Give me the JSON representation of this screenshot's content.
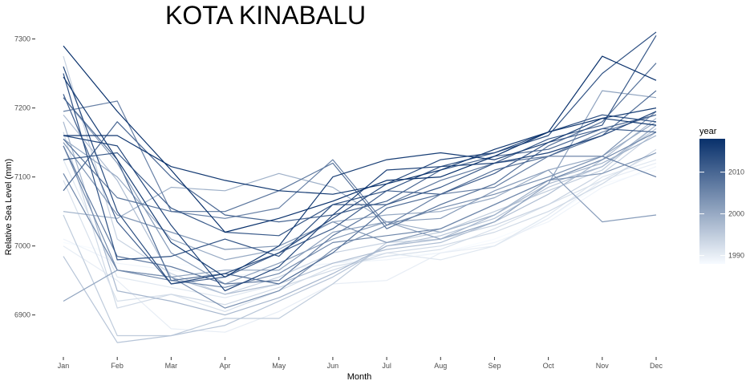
{
  "chart_data": {
    "type": "line",
    "title": "KOTA KINABALU",
    "xlabel": "Month",
    "ylabel": "Relative Sea Level (mm)",
    "categories": [
      "Jan",
      "Feb",
      "Mar",
      "Apr",
      "May",
      "Jun",
      "Jul",
      "Aug",
      "Sep",
      "Oct",
      "Nov",
      "Dec"
    ],
    "yticks": [
      6900,
      7000,
      7100,
      7200,
      7300
    ],
    "ylim": [
      6845,
      7310
    ],
    "grid": false,
    "legend": {
      "title": "year",
      "position": "right",
      "min": 1988,
      "max": 2018,
      "ticks": [
        1990,
        2000,
        2010
      ],
      "color_low": "#f7fbff",
      "color_high": "#08306b"
    },
    "series": [
      {
        "year": 1988,
        "values": [
          7005,
          6990,
          6975,
          6965,
          6970,
          6975,
          6985,
          6990,
          7010,
          7040,
          7090,
          7110
        ]
      },
      {
        "year": 1989,
        "values": [
          7010,
          6975,
          6965,
          6955,
          6965,
          6975,
          6980,
          6990,
          7005,
          7035,
          7085,
          7115
        ]
      },
      {
        "year": 1990,
        "values": [
          7000,
          6950,
          6880,
          6875,
          6905,
          6945,
          6950,
          6990,
          7000,
          7040,
          7095,
          7120
        ]
      },
      {
        "year": 1991,
        "values": [
          7125,
          6955,
          6940,
          6925,
          6945,
          6975,
          6990,
          6980,
          7000,
          7045,
          7100,
          7125
        ]
      },
      {
        "year": 1992,
        "values": [
          7095,
          6920,
          6930,
          6905,
          6935,
          6970,
          6985,
          6995,
          7025,
          7060,
          7095,
          7135
        ]
      },
      {
        "year": 1993,
        "values": [
          7165,
          6910,
          6930,
          6915,
          6940,
          6965,
          6990,
          7000,
          7020,
          7050,
          7090,
          7140
        ]
      },
      {
        "year": 1994,
        "values": [
          7275,
          7010,
          6960,
          6930,
          6955,
          6990,
          7005,
          7010,
          7030,
          7060,
          7105,
          7165
        ]
      },
      {
        "year": 1995,
        "values": [
          7045,
          6870,
          6870,
          6895,
          6895,
          6945,
          7005,
          7020,
          7050,
          7080,
          7110,
          7175
        ]
      },
      {
        "year": 1996,
        "values": [
          6985,
          6860,
          6870,
          6885,
          6920,
          6955,
          7000,
          7015,
          7040,
          7085,
          7115,
          7170
        ]
      },
      {
        "year": 1997,
        "values": [
          7190,
          7095,
          6955,
          6930,
          6945,
          6975,
          6995,
          7005,
          7035,
          7075,
          7125,
          7185
        ]
      },
      {
        "year": 1998,
        "values": [
          7180,
          6935,
          6920,
          6900,
          6925,
          6960,
          7000,
          7010,
          7045,
          7090,
          7115,
          7175
        ]
      },
      {
        "year": 1999,
        "values": [
          7050,
          7040,
          7085,
          7080,
          7105,
          7085,
          7035,
          7020,
          7045,
          7095,
          7120,
          7160
        ]
      },
      {
        "year": 2000,
        "values": [
          7155,
          7100,
          7010,
          6980,
          6995,
          7035,
          7045,
          7050,
          7070,
          7110,
          7130,
          7180
        ]
      },
      {
        "year": 2001,
        "values": [
          6920,
          6965,
          6955,
          6965,
          6965,
          7020,
          7035,
          7010,
          7035,
          7090,
          7225,
          7215
        ]
      },
      {
        "year": 2002,
        "values": [
          7215,
          7120,
          6990,
          6945,
          6975,
          7010,
          7035,
          7040,
          7080,
          7110,
          7035,
          7045
        ]
      },
      {
        "year": 2003,
        "values": [
          7150,
          7045,
          7020,
          6995,
          7000,
          7035,
          7005,
          7025,
          7060,
          7095,
          7105,
          7135
        ]
      },
      {
        "year": 2004,
        "values": [
          7145,
          6965,
          6955,
          6910,
          6935,
          6995,
          7030,
          7055,
          7075,
          7100,
          7130,
          7195
        ]
      },
      {
        "year": 2005,
        "values": [
          7105,
          6965,
          6950,
          6940,
          6960,
          7005,
          7015,
          7025,
          7060,
          7095,
          7125,
          7165
        ]
      },
      {
        "year": 2006,
        "values": [
          7195,
          7210,
          7050,
          7040,
          7055,
          7125,
          7030,
          7075,
          7085,
          7130,
          7165,
          7190
        ]
      },
      {
        "year": 2007,
        "values": [
          7145,
          6985,
          6970,
          6945,
          6950,
          7015,
          7060,
          7095,
          7120,
          7130,
          7130,
          7100
        ]
      },
      {
        "year": 2008,
        "values": [
          7155,
          7070,
          7050,
          7050,
          7080,
          7120,
          7025,
          7060,
          7090,
          7145,
          7180,
          7265
        ]
      },
      {
        "year": 2009,
        "values": [
          7215,
          7125,
          6950,
          6960,
          6945,
          6990,
          7055,
          7075,
          7110,
          7130,
          7160,
          7225
        ]
      },
      {
        "year": 2010,
        "values": [
          7080,
          7180,
          7100,
          7045,
          7035,
          7045,
          7065,
          7110,
          7130,
          7140,
          7170,
          7190
        ]
      },
      {
        "year": 2011,
        "values": [
          7220,
          7035,
          6945,
          6955,
          6990,
          7025,
          7080,
          7075,
          7105,
          7150,
          7170,
          7165
        ]
      },
      {
        "year": 2012,
        "values": [
          7125,
          7135,
          7055,
          7020,
          7015,
          7060,
          7060,
          7085,
          7120,
          7155,
          7175,
          7305
        ]
      },
      {
        "year": 2013,
        "values": [
          7250,
          6980,
          6985,
          7010,
          6985,
          7060,
          7080,
          7115,
          7135,
          7160,
          7250,
          7310
        ]
      },
      {
        "year": 2014,
        "values": [
          7260,
          7050,
          6945,
          6960,
          6990,
          7040,
          7090,
          7125,
          7135,
          7165,
          7190,
          7180
        ]
      },
      {
        "year": 2015,
        "values": [
          7160,
          7145,
          7030,
          6935,
          6970,
          7045,
          7110,
          7115,
          7120,
          7135,
          7160,
          7195
        ]
      },
      {
        "year": 2016,
        "values": [
          7245,
          7125,
          7005,
          6955,
          7000,
          7100,
          7125,
          7135,
          7125,
          7150,
          7185,
          7200
        ]
      },
      {
        "year": 2017,
        "values": [
          7160,
          7160,
          7115,
          7095,
          7080,
          7075,
          7090,
          7110,
          7140,
          7165,
          7185,
          7175
        ]
      },
      {
        "year": 2018,
        "values": [
          7290,
          7195,
          7110,
          7020,
          7040,
          7065,
          7095,
          7100,
          7130,
          7165,
          7275,
          7240
        ]
      }
    ]
  },
  "plot": {
    "title": "KOTA KINABALU",
    "xlabel": "Month",
    "ylabel": "Relative Sea Level (mm)",
    "legend_title": "year"
  }
}
